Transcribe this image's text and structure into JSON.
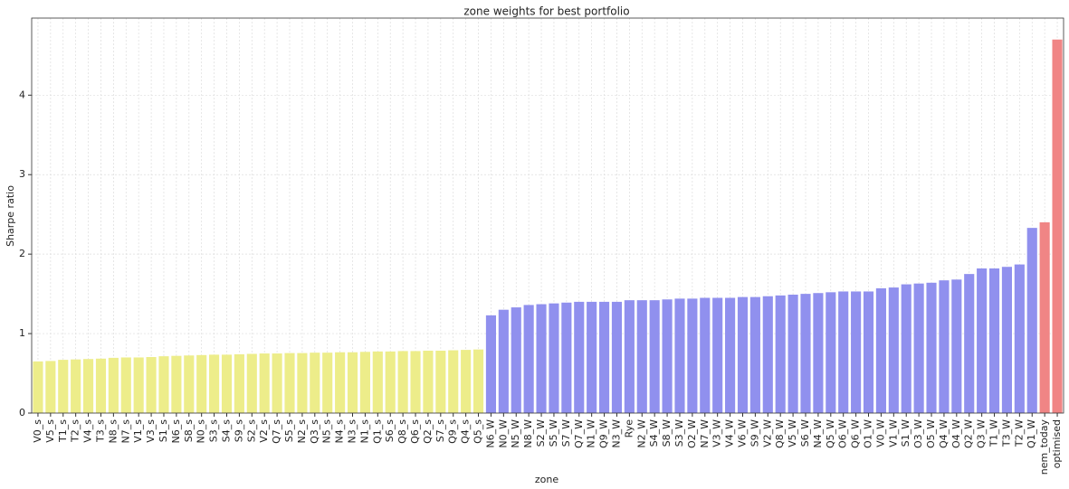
{
  "chart_data": {
    "type": "bar",
    "title": "zone weights for best portfolio",
    "x_label": "zone",
    "y_label": "Sharpe ratio",
    "categories": [
      "V0_s",
      "V5_s",
      "T1_s",
      "T2_s",
      "V4_s",
      "T3_s",
      "N8_s",
      "N7_s",
      "V1_s",
      "V3_s",
      "S1_s",
      "N6_s",
      "S8_s",
      "N0_s",
      "S3_s",
      "S4_s",
      "S9_s",
      "S2_s",
      "V2_s",
      "Q7_s",
      "S5_s",
      "N2_s",
      "Q3_s",
      "N5_s",
      "N4_s",
      "N3_s",
      "N1_s",
      "Q1_s",
      "S6_s",
      "Q8_s",
      "Q6_s",
      "Q2_s",
      "S7_s",
      "Q9_s",
      "Q4_s",
      "Q5_s",
      "N6_W",
      "N0_W",
      "N5_W",
      "N8_W",
      "S2_W",
      "S5_W",
      "S7_W",
      "Q7_W",
      "N1_W",
      "Q9_W",
      "N3_W",
      "Rye",
      "N2_W",
      "S4_W",
      "S8_W",
      "S3_W",
      "O2_W",
      "N7_W",
      "V3_W",
      "V4_W",
      "V6_W",
      "S9_W",
      "V2_W",
      "Q8_W",
      "V5_W",
      "S6_W",
      "N4_W",
      "Q5_W",
      "O6_W",
      "Q6_W",
      "O1_W",
      "V0_W",
      "V1_W",
      "S1_W",
      "O3_W",
      "O5_W",
      "Q4_W",
      "O4_W",
      "Q2_W",
      "Q3_W",
      "T1_W",
      "T3_W",
      "T2_W",
      "Q1_W",
      "nem_today",
      "optimised"
    ],
    "values": [
      0.65,
      0.655,
      0.67,
      0.675,
      0.68,
      0.685,
      0.695,
      0.7,
      0.7,
      0.705,
      0.715,
      0.72,
      0.725,
      0.73,
      0.735,
      0.735,
      0.74,
      0.745,
      0.75,
      0.75,
      0.755,
      0.755,
      0.76,
      0.76,
      0.765,
      0.765,
      0.77,
      0.775,
      0.775,
      0.78,
      0.78,
      0.785,
      0.785,
      0.79,
      0.795,
      0.8,
      1.23,
      1.3,
      1.33,
      1.36,
      1.37,
      1.38,
      1.39,
      1.4,
      1.4,
      1.4,
      1.4,
      1.42,
      1.42,
      1.42,
      1.43,
      1.44,
      1.44,
      1.45,
      1.45,
      1.45,
      1.46,
      1.46,
      1.47,
      1.48,
      1.49,
      1.5,
      1.51,
      1.52,
      1.53,
      1.53,
      1.53,
      1.57,
      1.58,
      1.62,
      1.63,
      1.64,
      1.67,
      1.68,
      1.75,
      1.82,
      1.82,
      1.84,
      1.87,
      2.33,
      2.4,
      4.7
    ],
    "bar_colors": [
      "#eded8a",
      "#eded8a",
      "#eded8a",
      "#eded8a",
      "#eded8a",
      "#eded8a",
      "#eded8a",
      "#eded8a",
      "#eded8a",
      "#eded8a",
      "#eded8a",
      "#eded8a",
      "#eded8a",
      "#eded8a",
      "#eded8a",
      "#eded8a",
      "#eded8a",
      "#eded8a",
      "#eded8a",
      "#eded8a",
      "#eded8a",
      "#eded8a",
      "#eded8a",
      "#eded8a",
      "#eded8a",
      "#eded8a",
      "#eded8a",
      "#eded8a",
      "#eded8a",
      "#eded8a",
      "#eded8a",
      "#eded8a",
      "#eded8a",
      "#eded8a",
      "#eded8a",
      "#eded8a",
      "#9090ee",
      "#9090ee",
      "#9090ee",
      "#9090ee",
      "#9090ee",
      "#9090ee",
      "#9090ee",
      "#9090ee",
      "#9090ee",
      "#9090ee",
      "#9090ee",
      "#9090ee",
      "#9090ee",
      "#9090ee",
      "#9090ee",
      "#9090ee",
      "#9090ee",
      "#9090ee",
      "#9090ee",
      "#9090ee",
      "#9090ee",
      "#9090ee",
      "#9090ee",
      "#9090ee",
      "#9090ee",
      "#9090ee",
      "#9090ee",
      "#9090ee",
      "#9090ee",
      "#9090ee",
      "#9090ee",
      "#9090ee",
      "#9090ee",
      "#9090ee",
      "#9090ee",
      "#9090ee",
      "#9090ee",
      "#9090ee",
      "#9090ee",
      "#9090ee",
      "#9090ee",
      "#9090ee",
      "#9090ee",
      "#9090ee",
      "#f08585",
      "#f08585"
    ],
    "ylim": [
      0,
      4.97
    ],
    "yticks": [
      0,
      1,
      2,
      3,
      4
    ],
    "grid": true
  }
}
